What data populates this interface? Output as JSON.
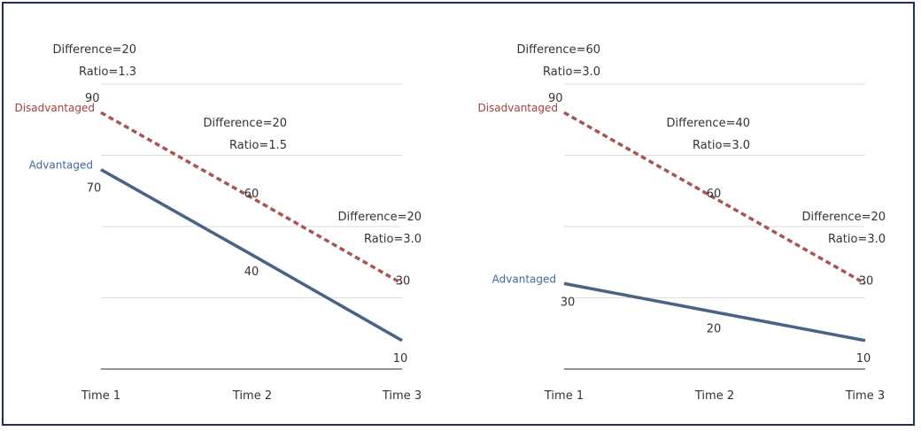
{
  "colors": {
    "advantaged": "#4a6285",
    "disadvantaged": "#a65555",
    "grid": "#dddddd",
    "axis": "#555555"
  },
  "chart_data": [
    {
      "type": "line",
      "categories": [
        "Time 1",
        "Time 2",
        "Time 3"
      ],
      "ylim": [
        0,
        100
      ],
      "grid": true,
      "series": [
        {
          "name": "Disadvantaged",
          "values": [
            90,
            60,
            30
          ],
          "style": "dashed",
          "color": "#a65555",
          "value_labels": [
            "90",
            "60",
            "30"
          ]
        },
        {
          "name": "Advantaged",
          "values": [
            70,
            40,
            10
          ],
          "style": "solid",
          "color": "#4a6285",
          "value_labels": [
            "70",
            "40",
            "10"
          ]
        }
      ],
      "annotations": [
        {
          "difference": "Difference=20",
          "ratio": "Ratio=1.3"
        },
        {
          "difference": "Difference=20",
          "ratio": "Ratio=1.5"
        },
        {
          "difference": "Difference=20",
          "ratio": "Ratio=3.0"
        }
      ]
    },
    {
      "type": "line",
      "categories": [
        "Time 1",
        "Time 2",
        "Time 3"
      ],
      "ylim": [
        0,
        100
      ],
      "grid": true,
      "series": [
        {
          "name": "Disadvantaged",
          "values": [
            90,
            60,
            30
          ],
          "style": "dashed",
          "color": "#a65555",
          "value_labels": [
            "90",
            "60",
            "30"
          ]
        },
        {
          "name": "Advantaged",
          "values": [
            30,
            20,
            10
          ],
          "style": "solid",
          "color": "#4a6285",
          "value_labels": [
            "30",
            "20",
            "10"
          ]
        }
      ],
      "annotations": [
        {
          "difference": "Difference=60",
          "ratio": "Ratio=3.0"
        },
        {
          "difference": "Difference=40",
          "ratio": "Ratio=3.0"
        },
        {
          "difference": "Difference=20",
          "ratio": "Ratio=3.0"
        }
      ]
    }
  ]
}
